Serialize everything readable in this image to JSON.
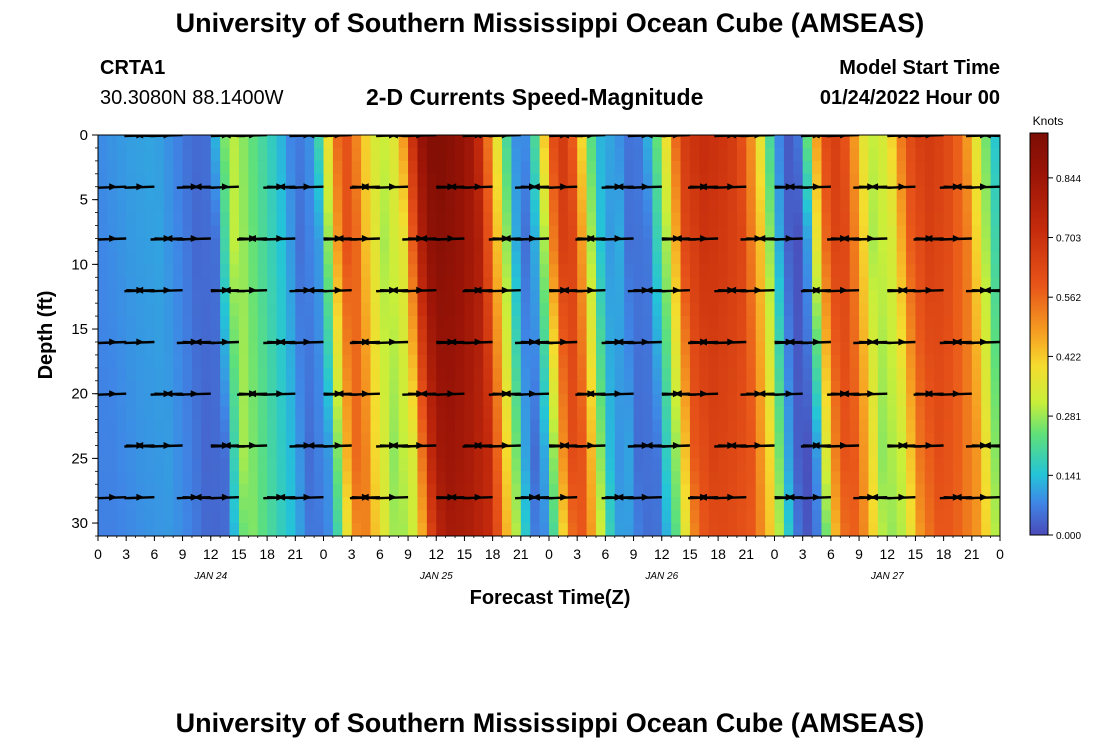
{
  "header": {
    "title": "University of Southern Mississippi Ocean Cube (AMSEAS)",
    "footer_title": "University of Southern Mississippi Ocean Cube (AMSEAS)",
    "station_id": "CRTA1",
    "coordinates": "30.3080N  88.1400W",
    "plot_title": "2-D Currents Speed-Magnitude",
    "model_start_label": "Model Start Time",
    "model_start_value": "01/24/2022 Hour 00"
  },
  "chart_data": {
    "type": "heatmap",
    "title": "2-D Currents Speed-Magnitude",
    "xlabel": "Forecast Time(Z)",
    "ylabel": "Depth (ft)",
    "colorbar_label": "Knots",
    "x_tick_labels": [
      "0",
      "3",
      "6",
      "9",
      "12",
      "15",
      "18",
      "21",
      "0",
      "3",
      "6",
      "9",
      "12",
      "15",
      "18",
      "21",
      "0",
      "3",
      "6",
      "9",
      "12",
      "15",
      "18",
      "21",
      "0",
      "3",
      "6",
      "9",
      "12",
      "15",
      "18",
      "21",
      "0"
    ],
    "x_range_hours": [
      0,
      96
    ],
    "date_labels": [
      {
        "hour": 12,
        "label": "JAN 24"
      },
      {
        "hour": 36,
        "label": "JAN 25"
      },
      {
        "hour": 60,
        "label": "JAN 26"
      },
      {
        "hour": 84,
        "label": "JAN 27"
      }
    ],
    "y_ticks": [
      0,
      5,
      10,
      15,
      20,
      25,
      30
    ],
    "ylim": [
      31,
      0
    ],
    "colorbar_ticks": [
      "0.000",
      "0.141",
      "0.281",
      "0.422",
      "0.562",
      "0.703",
      "0.844"
    ],
    "colorbar_range": [
      0,
      0.95
    ],
    "speed_profile": {
      "hours": [
        0,
        3,
        6,
        8,
        10,
        12,
        13,
        14,
        16,
        19,
        21,
        23,
        24,
        25,
        26,
        27,
        28,
        30,
        32,
        34,
        35,
        36,
        38,
        40,
        42,
        44,
        45,
        46,
        47,
        48,
        49,
        50,
        51,
        52,
        53,
        54,
        55,
        56,
        58,
        60,
        62,
        64,
        66,
        68,
        70,
        72,
        73,
        74,
        75,
        76,
        77,
        78,
        79,
        80,
        82,
        84,
        86,
        88,
        90,
        92,
        94,
        96
      ],
      "knots": [
        0.08,
        0.1,
        0.11,
        0.08,
        0.04,
        0.05,
        0.2,
        0.32,
        0.25,
        0.15,
        0.05,
        0.1,
        0.28,
        0.5,
        0.62,
        0.58,
        0.45,
        0.3,
        0.38,
        0.82,
        0.92,
        0.94,
        0.9,
        0.82,
        0.45,
        0.12,
        0.05,
        0.12,
        0.3,
        0.55,
        0.68,
        0.66,
        0.5,
        0.3,
        0.15,
        0.1,
        0.12,
        0.05,
        0.06,
        0.3,
        0.65,
        0.72,
        0.7,
        0.66,
        0.45,
        0.12,
        0.03,
        0.01,
        0.1,
        0.38,
        0.58,
        0.66,
        0.65,
        0.55,
        0.3,
        0.35,
        0.6,
        0.68,
        0.64,
        0.55,
        0.3,
        0.1
      ]
    },
    "vector_depths_ft": [
      0,
      4,
      8,
      12,
      16,
      20,
      24,
      28
    ],
    "vector_hours": [
      3,
      6,
      9,
      12,
      15,
      18,
      21,
      24,
      27,
      30,
      33,
      36,
      39,
      42,
      45,
      48,
      51,
      54,
      57,
      60,
      63,
      66,
      69,
      72,
      75,
      78,
      81,
      84,
      87,
      90,
      93,
      96
    ]
  }
}
